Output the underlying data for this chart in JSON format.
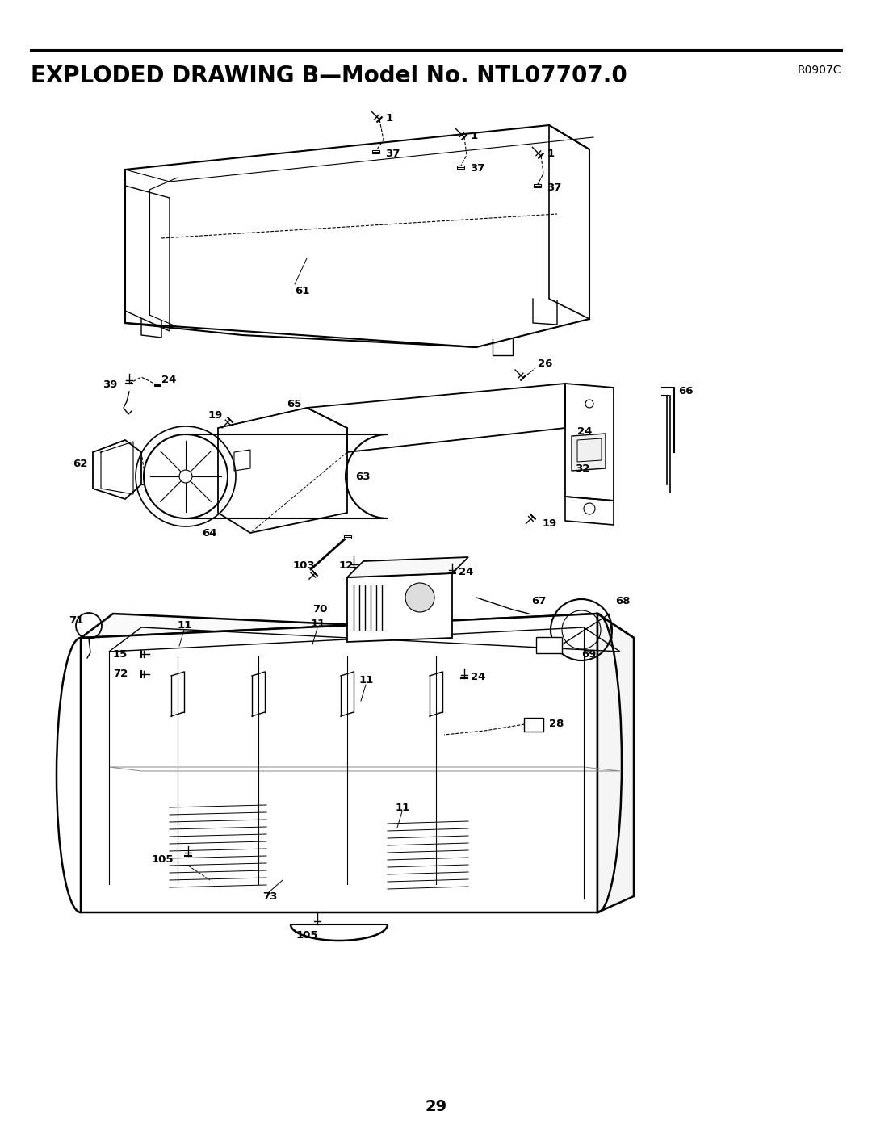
{
  "title": "EXPLODED DRAWING B—Model No. NTL07707.0",
  "model_ref": "R0907C",
  "page_number": "29",
  "bg_color": "#ffffff",
  "line_color": "#000000",
  "title_fontsize": 20,
  "ref_fontsize": 10,
  "page_fontsize": 14,
  "label_fontsize": 9.5,
  "fig_width": 10.8,
  "fig_height": 13.97
}
